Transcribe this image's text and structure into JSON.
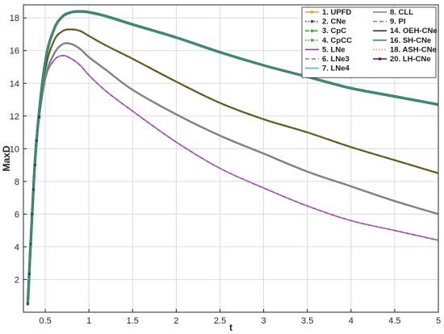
{
  "chart_data": {
    "type": "line",
    "xlabel": "t",
    "ylabel": "MaxD",
    "xlim": [
      0.25,
      5
    ],
    "ylim": [
      0,
      18.8
    ],
    "xticks": [
      0.5,
      1,
      1.5,
      2,
      2.5,
      3,
      3.5,
      4,
      4.5,
      5
    ],
    "xtick_labels": [
      "0.5",
      "1",
      "1.5",
      "2",
      "2.5",
      "3",
      "3.5",
      "4",
      "4.5",
      "5"
    ],
    "yticks": [
      2,
      4,
      6,
      8,
      10,
      12,
      14,
      16,
      18
    ],
    "ytick_labels": [
      "2",
      "4",
      "6",
      "8",
      "10",
      "12",
      "14",
      "16",
      "18"
    ],
    "grid": true,
    "legend_position": "top-right",
    "x": [
      0.3,
      0.35,
      0.4,
      0.5,
      0.6,
      0.7,
      0.8,
      0.9,
      1.0,
      1.2,
      1.5,
      2.0,
      2.5,
      3.0,
      3.5,
      4.0,
      4.5,
      5.0
    ],
    "groups": {
      "upper": [
        0.5,
        6.0,
        10.5,
        15.3,
        17.3,
        18.1,
        18.35,
        18.4,
        18.35,
        18.1,
        17.6,
        16.8,
        15.9,
        15.1,
        14.4,
        13.7,
        13.2,
        12.7
      ],
      "middle": [
        0.5,
        6.0,
        10.5,
        14.8,
        16.6,
        17.2,
        17.3,
        17.2,
        16.9,
        16.3,
        15.5,
        14.1,
        12.8,
        11.8,
        11.0,
        10.1,
        9.3,
        8.5
      ],
      "gray": [
        0.5,
        6.0,
        10.5,
        14.3,
        15.8,
        16.4,
        16.4,
        16.1,
        15.6,
        14.8,
        13.6,
        12.1,
        10.8,
        9.7,
        8.6,
        7.7,
        6.8,
        6.0
      ],
      "lower": [
        0.5,
        6.0,
        10.5,
        14.2,
        15.4,
        15.7,
        15.5,
        15.1,
        14.5,
        13.5,
        12.3,
        10.4,
        8.8,
        7.6,
        6.5,
        5.6,
        5.0,
        4.4
      ]
    },
    "series": [
      {
        "name": "1. UPFD",
        "color": "#d9a441",
        "dash": "solid",
        "marker": "diamond",
        "group": "middle"
      },
      {
        "name": "2. CNe",
        "color": "#2e5c3e",
        "dash": "dotted",
        "marker": "circle",
        "group": "middle"
      },
      {
        "name": "3. CpC",
        "color": "#2ab52a",
        "dash": "dashdot",
        "marker": "triangle",
        "group": "middle"
      },
      {
        "name": "4. CpCC",
        "color": "#6b8e5a",
        "dash": "dotted",
        "marker": "plus",
        "group": "middle"
      },
      {
        "name": "5. LNe",
        "color": "#8e3fa0",
        "dash": "solid",
        "marker": "none",
        "group": "lower"
      },
      {
        "name": "6. LNe3",
        "color": "#9a6bb8",
        "dash": "dashed",
        "marker": "none",
        "group": "lower"
      },
      {
        "name": "7. LNe4",
        "color": "#59c0a0",
        "dash": "solid",
        "marker": "none",
        "group": "middle"
      },
      {
        "name": "8. CLL",
        "color": "#7f7f8c",
        "dash": "solid",
        "marker": "none",
        "group": "gray"
      },
      {
        "name": "9. PI",
        "color": "#c060c0",
        "dash": "dashed",
        "marker": "none",
        "group": "lower"
      },
      {
        "name": "14. OEH-CNe",
        "color": "#1e4d2b",
        "dash": "solid",
        "marker": "none",
        "group": "upper"
      },
      {
        "name": "16. SH-CNe",
        "color": "#3a8a7a",
        "dash": "solid",
        "marker": "none",
        "group": "upper"
      },
      {
        "name": "18. ASH-CNe",
        "color": "#e8a040",
        "dash": "dotted",
        "marker": "none",
        "group": "middle"
      },
      {
        "name": "20. LH-CNe",
        "color": "#5a1a1a",
        "dash": "solid",
        "marker": "dot",
        "group": "middle"
      }
    ]
  }
}
